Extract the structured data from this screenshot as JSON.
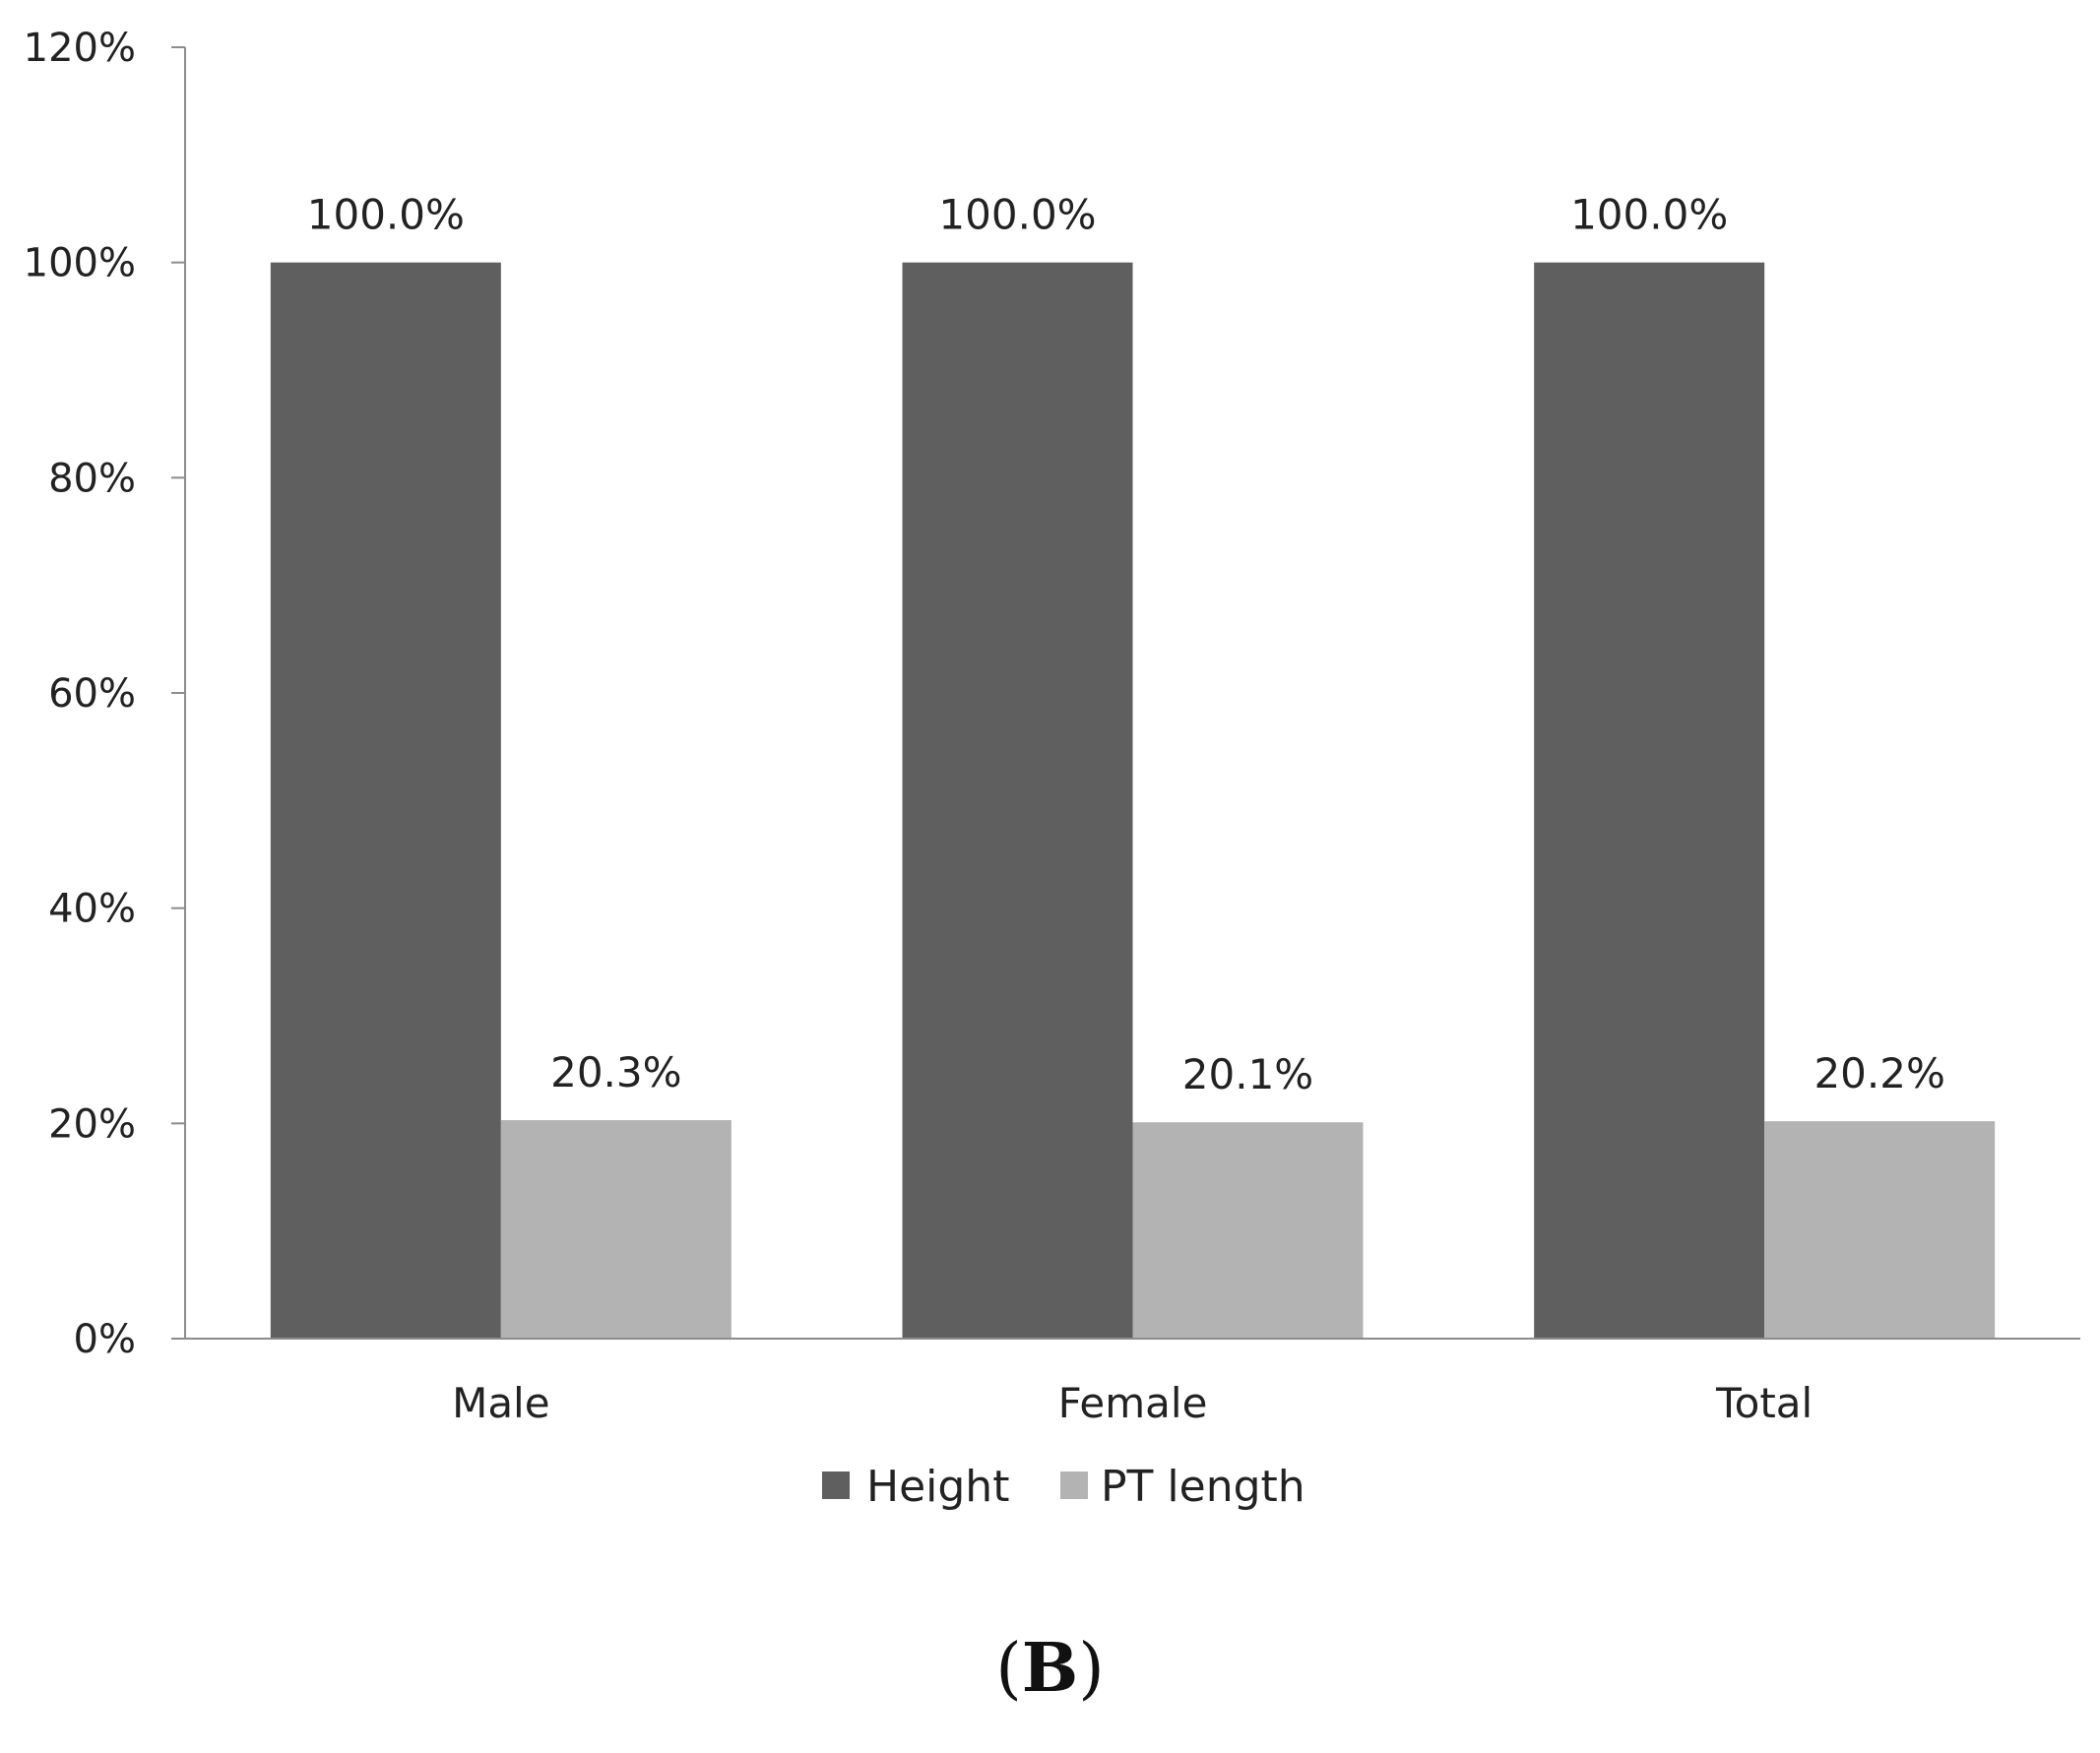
{
  "chart_data": {
    "type": "bar",
    "categories": [
      "Male",
      "Female",
      "Total"
    ],
    "series": [
      {
        "name": "Height",
        "values": [
          100.0,
          100.0,
          100.0
        ],
        "labels": [
          "100.0%",
          "100.0%",
          "100.0%"
        ],
        "color": "#5f5f5f"
      },
      {
        "name": "PT length",
        "values": [
          20.3,
          20.1,
          20.2
        ],
        "labels": [
          "20.3%",
          "20.1%",
          "20.2%"
        ],
        "color": "#b3b3b3"
      }
    ],
    "ylim": [
      0,
      120
    ],
    "yticks": [
      "0%",
      "20%",
      "40%",
      "60%",
      "80%",
      "100%",
      "120%"
    ],
    "grid": false,
    "legend_position": "bottom-center"
  },
  "panel": {
    "open": "(",
    "letter": "B",
    "close": ")"
  }
}
